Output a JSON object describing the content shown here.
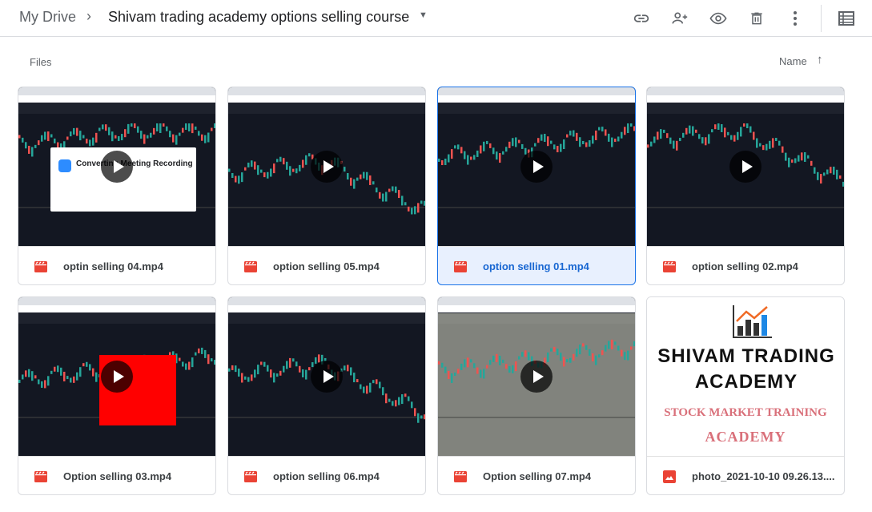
{
  "breadcrumb": {
    "root": "My Drive",
    "separator": "›",
    "current": "Shivam trading academy options selling course"
  },
  "toolbar": {
    "icons": [
      "link-icon",
      "add-person-icon",
      "preview-eye-icon",
      "trash-icon",
      "more-vert-icon",
      "list-view-icon"
    ]
  },
  "section": {
    "label": "Files",
    "sort_label": "Name",
    "sort_direction": "ascending"
  },
  "accent": "#1a73e8",
  "files": [
    {
      "name": "optin selling 04.mp4",
      "type": "video",
      "overlay": "Converting Meeting Recording"
    },
    {
      "name": "option selling 05.mp4",
      "type": "video"
    },
    {
      "name": "option selling 01.mp4",
      "type": "video",
      "selected": true
    },
    {
      "name": "option selling 02.mp4",
      "type": "video"
    },
    {
      "name": "Option selling 03.mp4",
      "type": "video"
    },
    {
      "name": "option selling 06.mp4",
      "type": "video"
    },
    {
      "name": "Option selling 07.mp4",
      "type": "video"
    },
    {
      "name": "photo_2021-10-10 09.26.13....",
      "type": "image",
      "logo": {
        "line1": "SHIVAM TRADING",
        "line2": "ACADEMY",
        "line3": "STOCK MARKET TRAINING",
        "line4": "ACADEMY"
      }
    }
  ]
}
